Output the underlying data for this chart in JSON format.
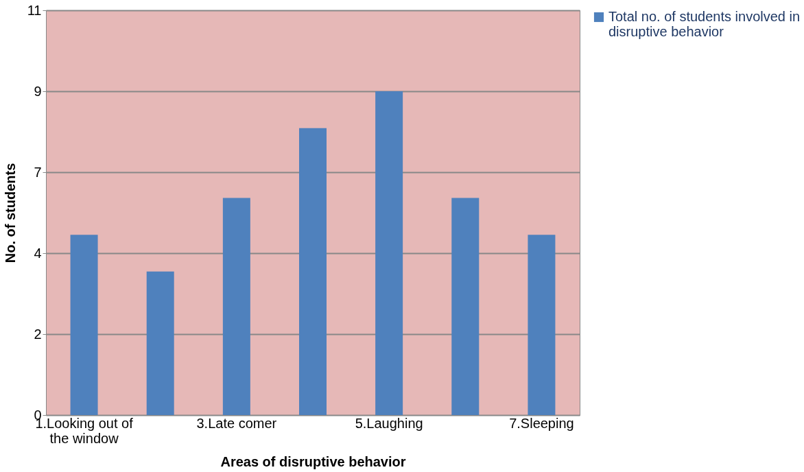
{
  "chart_data": {
    "type": "bar",
    "xlabel": "Areas of disruptive behavior",
    "ylabel": "No. of students",
    "categories": [
      "1.Looking out of the window",
      null,
      "3.Late comer",
      null,
      "5.Laughing",
      null,
      "7.Sleeping"
    ],
    "series": [
      {
        "name": "Total no. of students involved in disruptive behavior",
        "color": "#4f81bd",
        "values": [
          4.9,
          3.9,
          5.9,
          7.8,
          8.8,
          5.9,
          4.9
        ]
      }
    ],
    "ylim": [
      0,
      11
    ],
    "yticks": [
      0,
      {
        "value": 2.2,
        "label": "2"
      },
      {
        "value": 4.4,
        "label": "4"
      },
      {
        "value": 6.6,
        "label": "7"
      },
      {
        "value": 8.8,
        "label": "9"
      },
      11
    ],
    "grid": "y",
    "legend": "top right"
  }
}
